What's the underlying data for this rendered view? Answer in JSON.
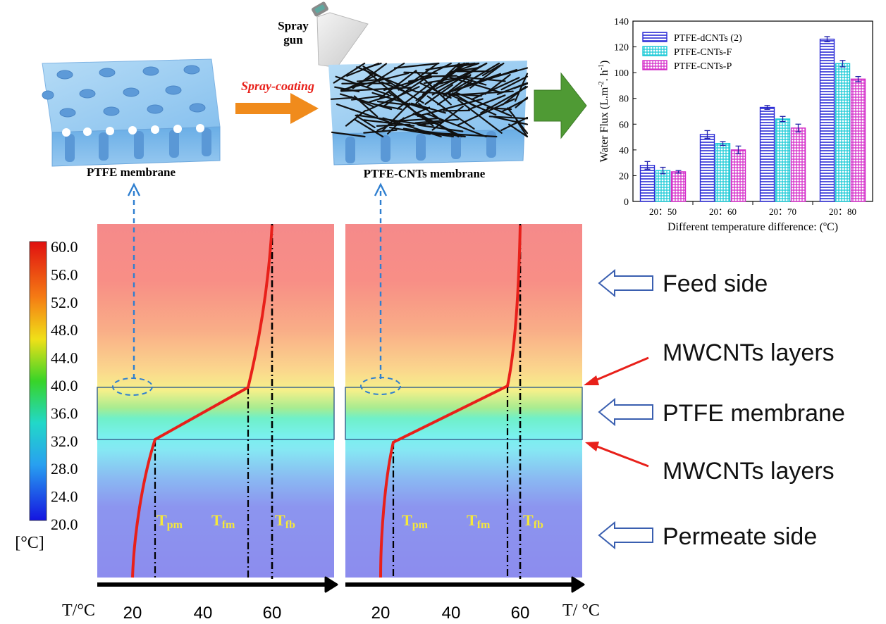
{
  "top": {
    "membrane_label": "PTFE membrane",
    "spray_gun_label_1": "Spray",
    "spray_gun_label_2": "gun",
    "spray_coating_label": "Spray-coating",
    "cnt_membrane_label": "PTFE-CNTs membrane"
  },
  "chart_data": {
    "type": "bar",
    "title": "",
    "xlabel_prefix": "Different temperature difference: (",
    "xlabel_unit_sup": "o",
    "xlabel_suffix": "C)",
    "ylabel": "Water Flux (L.m",
    "ylabel_sup1": "-2",
    "ylabel_mid": ". h",
    "ylabel_sup2": "-1",
    "ylabel_end": ")",
    "categories": [
      "20：50",
      "20：60",
      "20：70",
      "20：80"
    ],
    "ylim": [
      0,
      140
    ],
    "yticks": [
      "0",
      "20",
      "40",
      "60",
      "80",
      "100",
      "120",
      "140"
    ],
    "legend_position": "top-left",
    "series": [
      {
        "name": "PTFE-dCNTs (2)",
        "values": [
          28,
          52,
          73,
          126
        ],
        "errors": [
          3,
          3,
          1.5,
          2
        ],
        "color": "#2b2bd6",
        "pattern": "hlines"
      },
      {
        "name": "PTFE-CNTs-F",
        "values": [
          24,
          45,
          64,
          107
        ],
        "errors": [
          2.5,
          1.5,
          2,
          2.5
        ],
        "color": "#18c9d6",
        "pattern": "grid"
      },
      {
        "name": "PTFE-CNTs-P",
        "values": [
          23,
          40,
          57,
          95
        ],
        "errors": [
          1,
          3,
          3,
          2
        ],
        "color": "#d42bc9",
        "pattern": "grid"
      }
    ]
  },
  "colorbar": {
    "unit": "[°C]",
    "ticks": [
      "60.0",
      "56.0",
      "52.0",
      "48.0",
      "44.0",
      "40.0",
      "36.0",
      "32.0",
      "28.0",
      "24.0",
      "20.0"
    ]
  },
  "panels": {
    "axis_label_left": "T/°C",
    "axis_label_right": "T/ °C",
    "axis_ticks": [
      "20",
      "40",
      "60"
    ],
    "t_pm": "T",
    "t_pm_sub": "pm",
    "t_fm": "T",
    "t_fm_sub": "fm",
    "t_fb": "T",
    "t_fb_sub": "fb"
  },
  "labels": {
    "feed_side": "Feed side",
    "mwcnts_top": "MWCNTs layers",
    "ptfe_membrane": "PTFE membrane",
    "mwcnts_bottom": "MWCNTs layers",
    "permeate_side": "Permeate side"
  },
  "colors": {
    "curve": "#e8201a",
    "dash_arrow": "#2f7fd0",
    "label_yellow": "#f5e83a",
    "side_arrow": "#3a5fb0",
    "green_arrow": "#4f9a34",
    "orange_arrow": "#f08b1c"
  }
}
